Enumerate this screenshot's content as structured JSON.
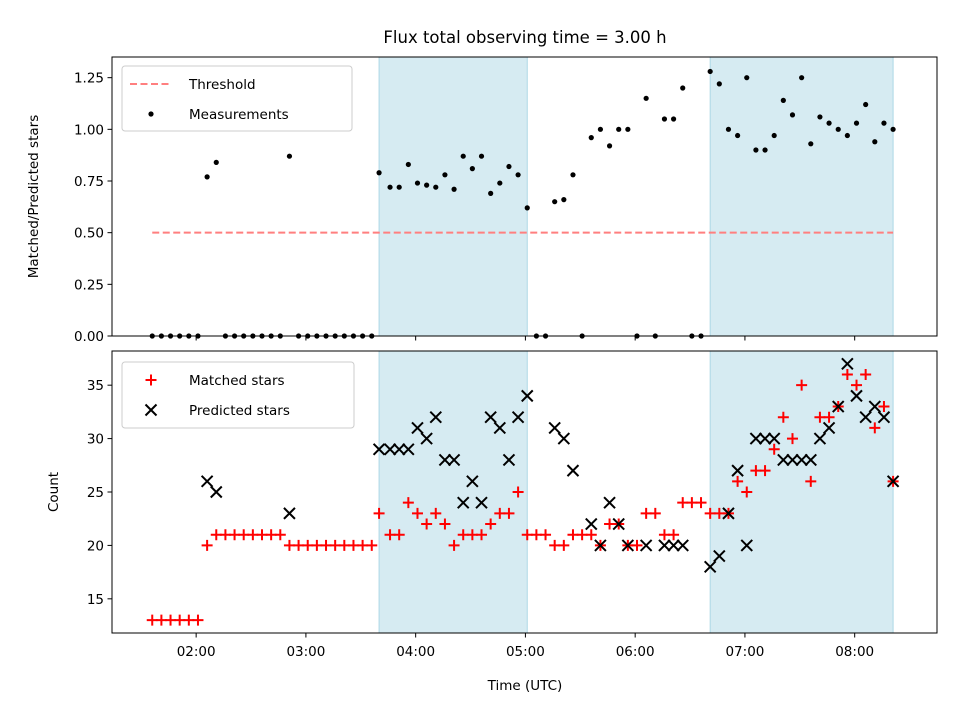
{
  "chart_data": [
    {
      "type": "scatter",
      "title": "Flux total observing time = 3.00 h",
      "xlabel": "",
      "ylabel": "Matched/Predicted stars",
      "xlim": [
        "01:14",
        "08:45"
      ],
      "ylim": [
        0,
        1.35
      ],
      "yticks": [
        "0.00",
        "0.25",
        "0.50",
        "0.75",
        "1.00",
        "1.25"
      ],
      "grid": false,
      "legend_position": "top-left",
      "shaded_intervals": [
        [
          "03:40",
          "05:01"
        ],
        [
          "06:41",
          "08:21"
        ]
      ],
      "series": [
        {
          "name": "Threshold",
          "kind": "dashed-line",
          "color": "#ff7f7f",
          "points": [
            [
              "01:36",
              0.5
            ],
            [
              "08:21",
              0.5
            ]
          ]
        },
        {
          "name": "Measurements",
          "kind": "dot",
          "color": "#000000",
          "points": [
            [
              "01:36",
              0
            ],
            [
              "01:41",
              0
            ],
            [
              "01:46",
              0
            ],
            [
              "01:51",
              0
            ],
            [
              "01:56",
              0
            ],
            [
              "02:01",
              0
            ],
            [
              "02:06",
              0.77
            ],
            [
              "02:11",
              0.84
            ],
            [
              "02:16",
              0
            ],
            [
              "02:21",
              0
            ],
            [
              "02:26",
              0
            ],
            [
              "02:31",
              0
            ],
            [
              "02:36",
              0
            ],
            [
              "02:41",
              0
            ],
            [
              "02:46",
              0
            ],
            [
              "02:51",
              0.87
            ],
            [
              "02:56",
              0
            ],
            [
              "03:01",
              0
            ],
            [
              "03:06",
              0
            ],
            [
              "03:11",
              0
            ],
            [
              "03:16",
              0
            ],
            [
              "03:21",
              0
            ],
            [
              "03:26",
              0
            ],
            [
              "03:31",
              0
            ],
            [
              "03:36",
              0
            ],
            [
              "03:40",
              0.79
            ],
            [
              "03:46",
              0.72
            ],
            [
              "03:51",
              0.72
            ],
            [
              "03:56",
              0.83
            ],
            [
              "04:01",
              0.74
            ],
            [
              "04:06",
              0.73
            ],
            [
              "04:11",
              0.72
            ],
            [
              "04:16",
              0.78
            ],
            [
              "04:21",
              0.71
            ],
            [
              "04:26",
              0.87
            ],
            [
              "04:31",
              0.81
            ],
            [
              "04:36",
              0.87
            ],
            [
              "04:41",
              0.69
            ],
            [
              "04:46",
              0.74
            ],
            [
              "04:51",
              0.82
            ],
            [
              "04:56",
              0.78
            ],
            [
              "05:01",
              0.62
            ],
            [
              "05:06",
              0
            ],
            [
              "05:11",
              0
            ],
            [
              "05:16",
              0.65
            ],
            [
              "05:21",
              0.66
            ],
            [
              "05:26",
              0.78
            ],
            [
              "05:31",
              0
            ],
            [
              "05:36",
              0.96
            ],
            [
              "05:41",
              1.0
            ],
            [
              "05:46",
              0.92
            ],
            [
              "05:51",
              1.0
            ],
            [
              "05:56",
              1.0
            ],
            [
              "06:01",
              0
            ],
            [
              "06:06",
              1.15
            ],
            [
              "06:11",
              0
            ],
            [
              "06:16",
              1.05
            ],
            [
              "06:21",
              1.05
            ],
            [
              "06:26",
              1.2
            ],
            [
              "06:31",
              0
            ],
            [
              "06:36",
              0
            ],
            [
              "06:41",
              1.28
            ],
            [
              "06:46",
              1.22
            ],
            [
              "06:51",
              1.0
            ],
            [
              "06:56",
              0.97
            ],
            [
              "07:01",
              1.25
            ],
            [
              "07:06",
              0.9
            ],
            [
              "07:11",
              0.9
            ],
            [
              "07:16",
              0.97
            ],
            [
              "07:21",
              1.14
            ],
            [
              "07:26",
              1.07
            ],
            [
              "07:31",
              1.25
            ],
            [
              "07:36",
              0.93
            ],
            [
              "07:41",
              1.06
            ],
            [
              "07:46",
              1.03
            ],
            [
              "07:51",
              1.0
            ],
            [
              "07:56",
              0.97
            ],
            [
              "08:01",
              1.03
            ],
            [
              "08:06",
              1.12
            ],
            [
              "08:11",
              0.94
            ],
            [
              "08:16",
              1.03
            ],
            [
              "08:21",
              1.0
            ]
          ]
        }
      ]
    },
    {
      "type": "scatter",
      "title": "",
      "xlabel": "Time (UTC)",
      "ylabel": "Count",
      "xlim": [
        "01:14",
        "08:45"
      ],
      "ylim": [
        11.8,
        38.2
      ],
      "yticks": [
        "15",
        "20",
        "25",
        "30",
        "35"
      ],
      "xticks": [
        "02:00",
        "03:00",
        "04:00",
        "05:00",
        "06:00",
        "07:00",
        "08:00"
      ],
      "grid": false,
      "legend_position": "top-left",
      "shaded_intervals": [
        [
          "03:40",
          "05:01"
        ],
        [
          "06:41",
          "08:21"
        ]
      ],
      "series": [
        {
          "name": "Matched stars",
          "kind": "plus",
          "color": "#ff0000",
          "points": [
            [
              "01:36",
              13
            ],
            [
              "01:41",
              13
            ],
            [
              "01:46",
              13
            ],
            [
              "01:51",
              13
            ],
            [
              "01:56",
              13
            ],
            [
              "02:01",
              13
            ],
            [
              "02:06",
              20
            ],
            [
              "02:11",
              21
            ],
            [
              "02:16",
              21
            ],
            [
              "02:21",
              21
            ],
            [
              "02:26",
              21
            ],
            [
              "02:31",
              21
            ],
            [
              "02:36",
              21
            ],
            [
              "02:41",
              21
            ],
            [
              "02:46",
              21
            ],
            [
              "02:51",
              20
            ],
            [
              "02:56",
              20
            ],
            [
              "03:01",
              20
            ],
            [
              "03:06",
              20
            ],
            [
              "03:11",
              20
            ],
            [
              "03:16",
              20
            ],
            [
              "03:21",
              20
            ],
            [
              "03:26",
              20
            ],
            [
              "03:31",
              20
            ],
            [
              "03:36",
              20
            ],
            [
              "03:40",
              23
            ],
            [
              "03:46",
              21
            ],
            [
              "03:51",
              21
            ],
            [
              "03:56",
              24
            ],
            [
              "04:01",
              23
            ],
            [
              "04:06",
              22
            ],
            [
              "04:11",
              23
            ],
            [
              "04:16",
              22
            ],
            [
              "04:21",
              20
            ],
            [
              "04:26",
              21
            ],
            [
              "04:31",
              21
            ],
            [
              "04:36",
              21
            ],
            [
              "04:41",
              22
            ],
            [
              "04:46",
              23
            ],
            [
              "04:51",
              23
            ],
            [
              "04:56",
              25
            ],
            [
              "05:01",
              21
            ],
            [
              "05:06",
              21
            ],
            [
              "05:11",
              21
            ],
            [
              "05:16",
              20
            ],
            [
              "05:21",
              20
            ],
            [
              "05:26",
              21
            ],
            [
              "05:31",
              21
            ],
            [
              "05:36",
              21
            ],
            [
              "05:41",
              20
            ],
            [
              "05:46",
              22
            ],
            [
              "05:51",
              22
            ],
            [
              "05:56",
              20
            ],
            [
              "06:01",
              20
            ],
            [
              "06:06",
              23
            ],
            [
              "06:11",
              23
            ],
            [
              "06:16",
              21
            ],
            [
              "06:21",
              21
            ],
            [
              "06:26",
              24
            ],
            [
              "06:31",
              24
            ],
            [
              "06:36",
              24
            ],
            [
              "06:41",
              23
            ],
            [
              "06:46",
              23
            ],
            [
              "06:51",
              23
            ],
            [
              "06:56",
              26
            ],
            [
              "07:01",
              25
            ],
            [
              "07:06",
              27
            ],
            [
              "07:11",
              27
            ],
            [
              "07:16",
              29
            ],
            [
              "07:21",
              32
            ],
            [
              "07:26",
              30
            ],
            [
              "07:31",
              35
            ],
            [
              "07:36",
              26
            ],
            [
              "07:41",
              32
            ],
            [
              "07:46",
              32
            ],
            [
              "07:51",
              33
            ],
            [
              "07:56",
              36
            ],
            [
              "08:01",
              35
            ],
            [
              "08:06",
              36
            ],
            [
              "08:11",
              31
            ],
            [
              "08:16",
              33
            ],
            [
              "08:21",
              26
            ]
          ]
        },
        {
          "name": "Predicted stars",
          "kind": "x",
          "color": "#000000",
          "points": [
            [
              "02:06",
              26
            ],
            [
              "02:11",
              25
            ],
            [
              "02:51",
              23
            ],
            [
              "03:40",
              29
            ],
            [
              "03:46",
              29
            ],
            [
              "03:51",
              29
            ],
            [
              "03:56",
              29
            ],
            [
              "04:01",
              31
            ],
            [
              "04:06",
              30
            ],
            [
              "04:11",
              32
            ],
            [
              "04:16",
              28
            ],
            [
              "04:21",
              28
            ],
            [
              "04:26",
              24
            ],
            [
              "04:31",
              26
            ],
            [
              "04:36",
              24
            ],
            [
              "04:41",
              32
            ],
            [
              "04:46",
              31
            ],
            [
              "04:51",
              28
            ],
            [
              "04:56",
              32
            ],
            [
              "05:01",
              34
            ],
            [
              "05:16",
              31
            ],
            [
              "05:21",
              30
            ],
            [
              "05:26",
              27
            ],
            [
              "05:36",
              22
            ],
            [
              "05:41",
              20
            ],
            [
              "05:46",
              24
            ],
            [
              "05:51",
              22
            ],
            [
              "05:56",
              20
            ],
            [
              "06:06",
              20
            ],
            [
              "06:16",
              20
            ],
            [
              "06:21",
              20
            ],
            [
              "06:26",
              20
            ],
            [
              "06:41",
              18
            ],
            [
              "06:46",
              19
            ],
            [
              "06:51",
              23
            ],
            [
              "06:56",
              27
            ],
            [
              "07:01",
              20
            ],
            [
              "07:06",
              30
            ],
            [
              "07:11",
              30
            ],
            [
              "07:16",
              30
            ],
            [
              "07:21",
              28
            ],
            [
              "07:26",
              28
            ],
            [
              "07:31",
              28
            ],
            [
              "07:36",
              28
            ],
            [
              "07:41",
              30
            ],
            [
              "07:46",
              31
            ],
            [
              "07:51",
              33
            ],
            [
              "07:56",
              37
            ],
            [
              "08:01",
              34
            ],
            [
              "08:06",
              32
            ],
            [
              "08:11",
              33
            ],
            [
              "08:16",
              32
            ],
            [
              "08:21",
              26
            ]
          ]
        }
      ]
    }
  ]
}
